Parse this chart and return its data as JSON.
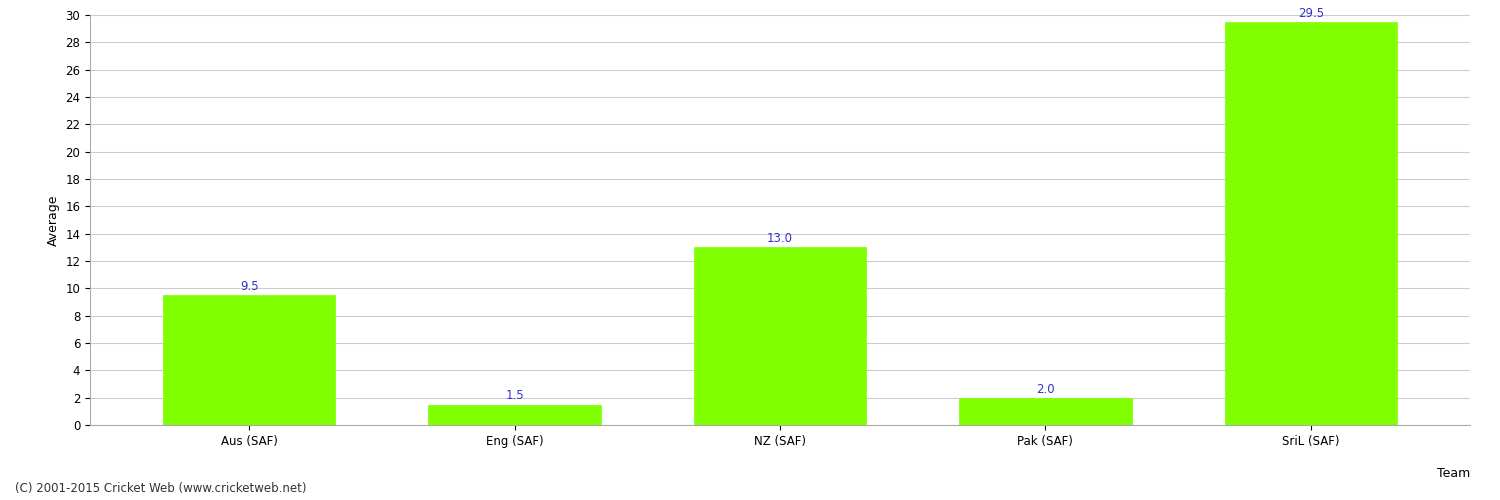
{
  "categories": [
    "Aus (SAF)",
    "Eng (SAF)",
    "NZ (SAF)",
    "Pak (SAF)",
    "SriL (SAF)"
  ],
  "values": [
    9.5,
    1.5,
    13.0,
    2.0,
    29.5
  ],
  "bar_color": "#7fff00",
  "bar_edge_color": "#7fff00",
  "value_color": "#3333cc",
  "xlabel": "Team",
  "ylabel": "Average",
  "ylim": [
    0,
    30
  ],
  "yticks": [
    0,
    2,
    4,
    6,
    8,
    10,
    12,
    14,
    16,
    18,
    20,
    22,
    24,
    26,
    28,
    30
  ],
  "bg_color": "#ffffff",
  "grid_color": "#cccccc",
  "footnote": "(C) 2001-2015 Cricket Web (www.cricketweb.net)",
  "value_fontsize": 8.5,
  "axis_label_fontsize": 9,
  "tick_fontsize": 8.5,
  "footnote_fontsize": 8.5
}
